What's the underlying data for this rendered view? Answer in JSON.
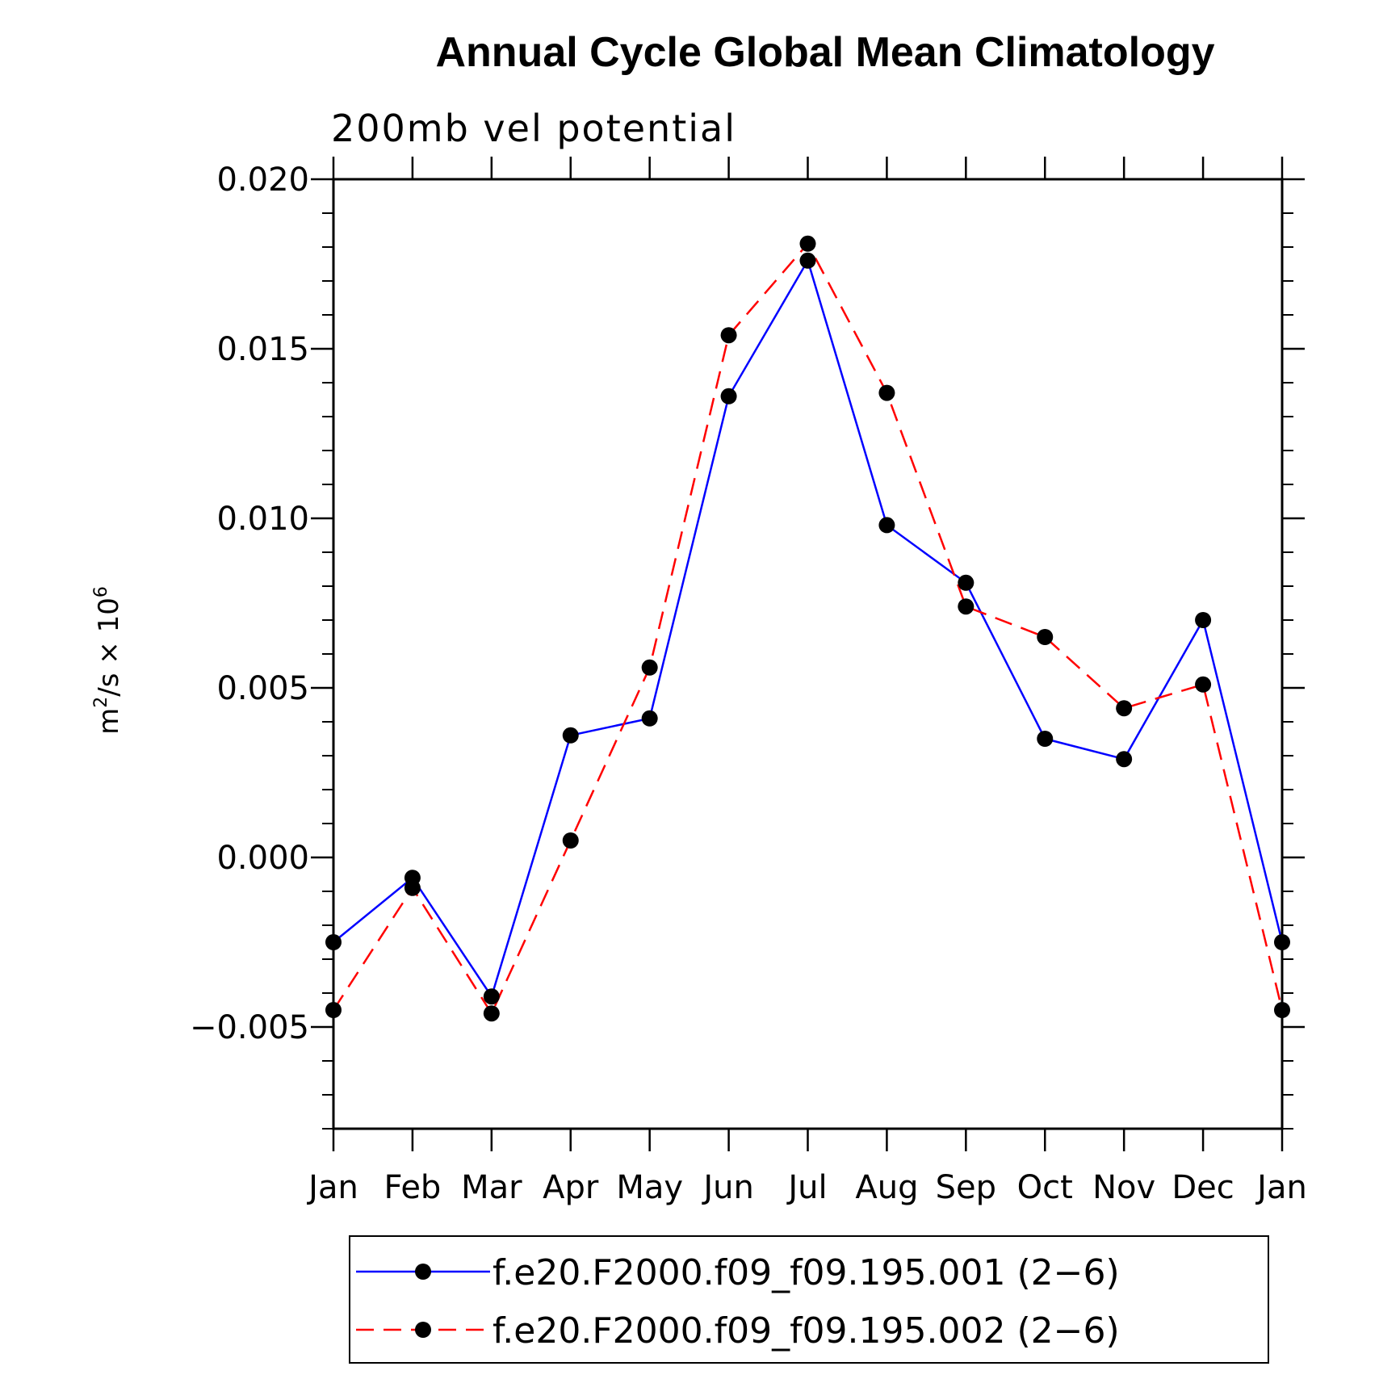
{
  "chart_data": {
    "type": "line",
    "title": "Annual Cycle Global Mean Climatology",
    "subtitle": "200mb vel potential",
    "ylabel": "m²/s × 10⁶",
    "ylabel_base": "m",
    "ylabel_sup1": "2",
    "ylabel_mid": "/s × 10",
    "ylabel_sup2": "6",
    "xlabel": "",
    "ylim": [
      -0.008,
      0.02
    ],
    "yticks": [
      -0.005,
      0.0,
      0.005,
      0.01,
      0.015,
      0.02
    ],
    "ytick_labels": [
      "−0.005",
      "0.000",
      "0.005",
      "0.010",
      "0.015",
      "0.020"
    ],
    "categories": [
      "Jan",
      "Feb",
      "Mar",
      "Apr",
      "May",
      "Jun",
      "Jul",
      "Aug",
      "Sep",
      "Oct",
      "Nov",
      "Dec",
      "Jan"
    ],
    "series": [
      {
        "name": "f.e20.F2000.f09_f09.195.001 (2−6)",
        "color": "#0000ff",
        "dash": "solid",
        "values": [
          -0.0025,
          -0.0006,
          -0.0041,
          0.0036,
          0.0041,
          0.0136,
          0.0176,
          0.0098,
          0.0081,
          0.0035,
          0.0029,
          0.007,
          -0.0025
        ]
      },
      {
        "name": "f.e20.F2000.f09_f09.195.002 (2−6)",
        "color": "#ff0000",
        "dash": "dashed",
        "values": [
          -0.0045,
          -0.0009,
          -0.0046,
          0.0005,
          0.0056,
          0.0154,
          0.0181,
          0.0137,
          0.0074,
          0.0065,
          0.0044,
          0.0051,
          -0.0045
        ]
      }
    ],
    "legend_position": "bottom"
  }
}
